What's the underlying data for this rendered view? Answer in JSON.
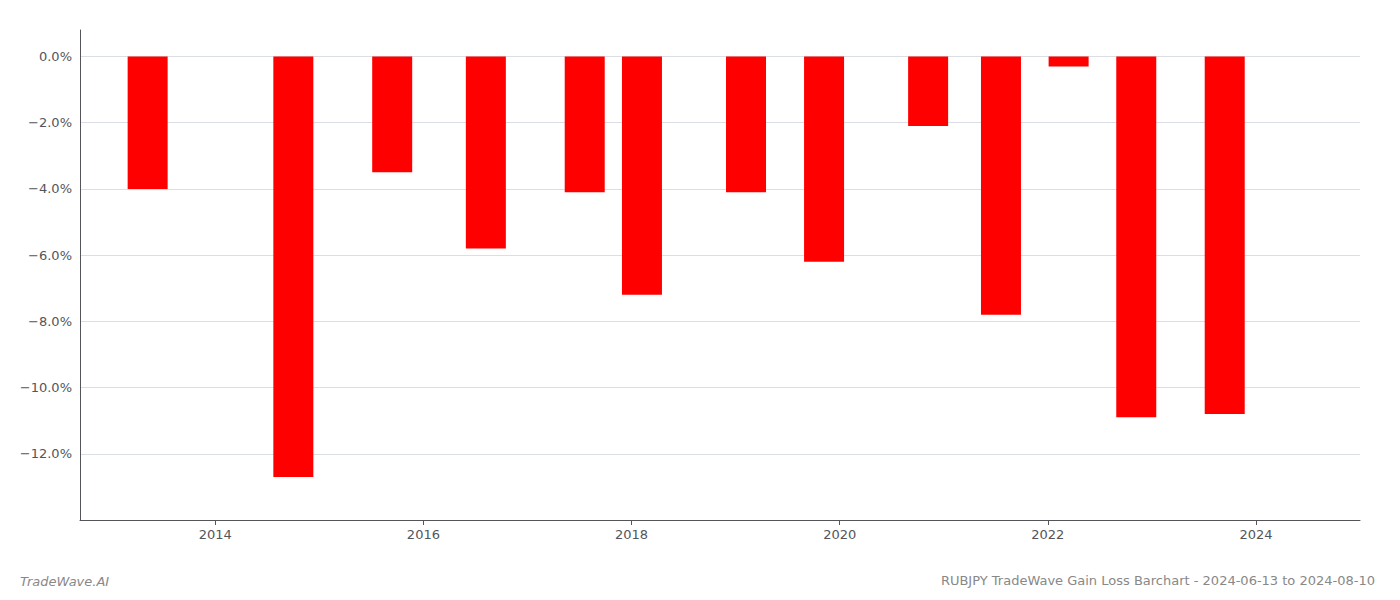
{
  "chart_data": {
    "type": "bar",
    "title": "RUBJPY TradeWave Gain Loss Barchart - 2024-06-13 to 2024-08-10",
    "annotations": [
      "TradeWave.AI"
    ],
    "x": [
      2013.35,
      2014.75,
      2015.7,
      2016.6,
      2017.55,
      2018.1,
      2019.1,
      2019.85,
      2020.85,
      2021.55,
      2022.2,
      2022.85,
      2023.7
    ],
    "values": [
      -4.0,
      -12.7,
      -3.5,
      -5.8,
      -4.1,
      -7.2,
      -4.1,
      -6.2,
      -2.1,
      -7.8,
      -0.3,
      -10.9,
      -10.8
    ],
    "color": "#ff0000",
    "xlim": [
      2012.7,
      2025.0
    ],
    "xticks": [
      2014,
      2016,
      2018,
      2020,
      2022,
      2024
    ],
    "ylim": [
      -14.0,
      0.8
    ],
    "yticks": [
      {
        "value": 0.0,
        "label": "0.0%"
      },
      {
        "value": -2.0,
        "label": "−2.0%"
      },
      {
        "value": -4.0,
        "label": "−4.0%"
      },
      {
        "value": -6.0,
        "label": "−6.0%"
      },
      {
        "value": -8.0,
        "label": "−8.0%"
      },
      {
        "value": -10.0,
        "label": "−10.0%"
      },
      {
        "value": -12.0,
        "label": "−12.0%"
      }
    ],
    "grid": true
  }
}
